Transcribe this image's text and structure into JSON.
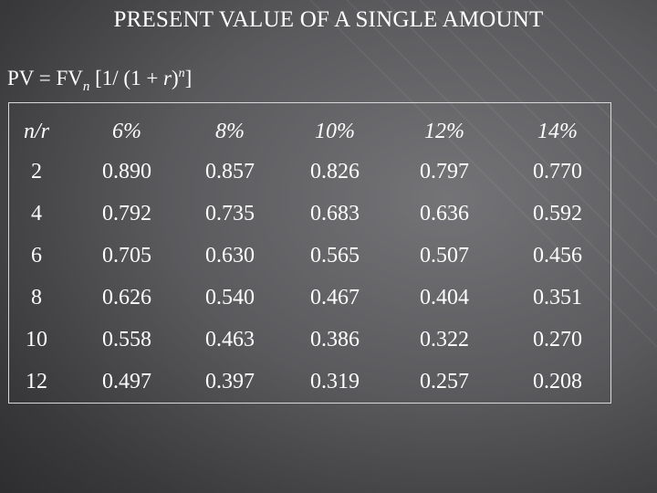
{
  "title": "PRESENT VALUE OF A SINGLE AMOUNT",
  "formula": {
    "lead": "PV = FV",
    "sub_n": "n",
    "bracket_open": " [1/ (1 + ",
    "r": "r",
    "paren_close": ")",
    "sup_n": "n",
    "bracket_close": "]"
  },
  "table": {
    "header_nr": "n/r",
    "columns": [
      "6%",
      "8%",
      "10%",
      "12%",
      "14%"
    ],
    "rows": [
      {
        "n": "2",
        "values": [
          "0.890",
          "0.857",
          "0.826",
          "0.797",
          "0.770"
        ]
      },
      {
        "n": "4",
        "values": [
          "0.792",
          "0.735",
          "0.683",
          "0.636",
          "0.592"
        ]
      },
      {
        "n": "6",
        "values": [
          "0.705",
          "0.630",
          "0.565",
          "0.507",
          "0.456"
        ]
      },
      {
        "n": "8",
        "values": [
          "0.626",
          "0.540",
          "0.467",
          "0.404",
          "0.351"
        ]
      },
      {
        "n": "10",
        "values": [
          "0.558",
          "0.463",
          "0.386",
          "0.322",
          "0.270"
        ]
      },
      {
        "n": "12",
        "values": [
          "0.497",
          "0.397",
          "0.319",
          "0.257",
          "0.208"
        ]
      }
    ]
  },
  "colors": {
    "background_center": "#747477",
    "background_edge": "#2c2c2e",
    "text": "#ffffff"
  }
}
